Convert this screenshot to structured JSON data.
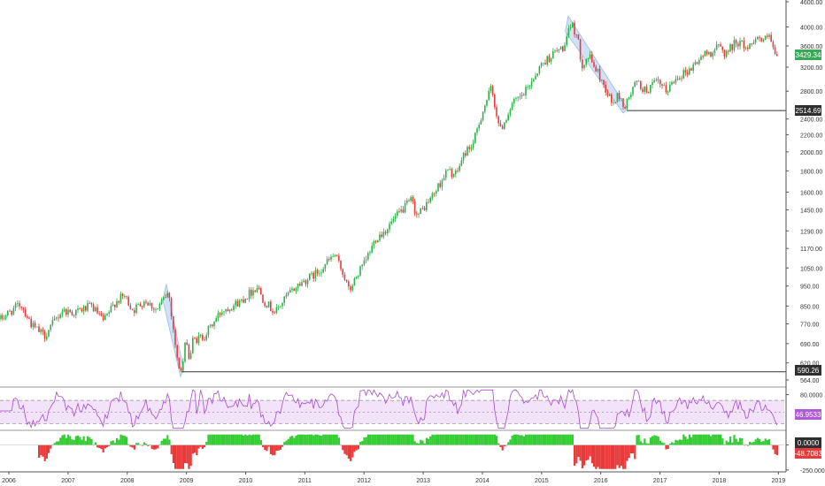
{
  "chart_data": [
    {
      "type": "candlestick",
      "panel": "price",
      "y_scale": "log",
      "ylim": [
        564,
        4600
      ],
      "y_ticks": [
        "4600.00",
        "4000.00",
        "3600.00",
        "3200.00",
        "2800.00",
        "2400.00",
        "2200.00",
        "2000.00",
        "1800.00",
        "1600.00",
        "1450.00",
        "1290.00",
        "1170.00",
        "1050.00",
        "950.00",
        "850.00",
        "770.00",
        "690.00",
        "620.00",
        "564.00"
      ],
      "x_ticks": [
        "2006",
        "2007",
        "2008",
        "2009",
        "2010",
        "2011",
        "2012",
        "2013",
        "2014",
        "2015",
        "2016",
        "2017",
        "2018",
        "2019"
      ],
      "x_range": [
        2005.85,
        2019.1
      ],
      "anchors": [
        [
          2005.85,
          790
        ],
        [
          2006.2,
          860
        ],
        [
          2006.4,
          760
        ],
        [
          2006.6,
          720
        ],
        [
          2006.9,
          830
        ],
        [
          2007.1,
          820
        ],
        [
          2007.4,
          850
        ],
        [
          2007.6,
          780
        ],
        [
          2007.8,
          870
        ],
        [
          2007.95,
          900
        ],
        [
          2008.1,
          830
        ],
        [
          2008.3,
          880
        ],
        [
          2008.5,
          830
        ],
        [
          2008.65,
          900
        ],
        [
          2008.7,
          920
        ],
        [
          2008.85,
          620
        ],
        [
          2008.92,
          590
        ],
        [
          2009.0,
          720
        ],
        [
          2009.05,
          620
        ],
        [
          2009.1,
          700
        ],
        [
          2009.3,
          720
        ],
        [
          2009.6,
          830
        ],
        [
          2009.9,
          870
        ],
        [
          2010.2,
          950
        ],
        [
          2010.3,
          880
        ],
        [
          2010.5,
          820
        ],
        [
          2010.7,
          900
        ],
        [
          2010.9,
          960
        ],
        [
          2011.2,
          1020
        ],
        [
          2011.5,
          1130
        ],
        [
          2011.65,
          1020
        ],
        [
          2011.75,
          920
        ],
        [
          2011.9,
          1020
        ],
        [
          2012.0,
          1070
        ],
        [
          2012.2,
          1240
        ],
        [
          2012.35,
          1290
        ],
        [
          2012.5,
          1370
        ],
        [
          2012.65,
          1450
        ],
        [
          2012.8,
          1530
        ],
        [
          2012.9,
          1400
        ],
        [
          2013.0,
          1460
        ],
        [
          2013.2,
          1600
        ],
        [
          2013.4,
          1800
        ],
        [
          2013.55,
          1760
        ],
        [
          2013.7,
          1990
        ],
        [
          2013.85,
          2100
        ],
        [
          2014.0,
          2500
        ],
        [
          2014.15,
          2850
        ],
        [
          2014.3,
          2250
        ],
        [
          2014.5,
          2600
        ],
        [
          2014.7,
          2750
        ],
        [
          2014.85,
          3000
        ],
        [
          2015.0,
          3250
        ],
        [
          2015.2,
          3450
        ],
        [
          2015.4,
          3600
        ],
        [
          2015.5,
          4100
        ],
        [
          2015.6,
          3800
        ],
        [
          2015.68,
          3250
        ],
        [
          2015.8,
          3400
        ],
        [
          2015.95,
          3100
        ],
        [
          2016.1,
          2800
        ],
        [
          2016.2,
          2600
        ],
        [
          2016.3,
          2750
        ],
        [
          2016.4,
          2550
        ],
        [
          2016.5,
          2750
        ],
        [
          2016.6,
          2950
        ],
        [
          2016.75,
          2800
        ],
        [
          2016.95,
          2950
        ],
        [
          2017.1,
          2800
        ],
        [
          2017.3,
          3050
        ],
        [
          2017.5,
          3150
        ],
        [
          2017.7,
          3400
        ],
        [
          2017.9,
          3500
        ],
        [
          2018.0,
          3600
        ],
        [
          2018.1,
          3450
        ],
        [
          2018.3,
          3700
        ],
        [
          2018.5,
          3550
        ],
        [
          2018.6,
          3800
        ],
        [
          2018.75,
          3700
        ],
        [
          2018.85,
          3800
        ],
        [
          2018.95,
          3350
        ],
        [
          2019.0,
          3429.34
        ]
      ],
      "last_value": "3429.34",
      "support_low": "590.26",
      "support_2016": "2514.69",
      "colors": {
        "up": "#2bb34a",
        "down": "#e83a3a",
        "highlight": "#9bbbe8",
        "last_badge": "#3ca659",
        "level_badge": "#2f2f2f"
      }
    },
    {
      "type": "line",
      "panel": "rsi",
      "ylim": [
        20,
        90
      ],
      "y_ticks": [
        "80.0000"
      ],
      "bands": [
        70,
        30
      ],
      "mid": 50,
      "last_value": "46.9533",
      "colors": {
        "line": "#a94ad2",
        "band_fill": "#f2e2fa",
        "badge": "#b05ad8"
      }
    },
    {
      "type": "bar",
      "panel": "histogram",
      "ylim": [
        -260,
        120
      ],
      "y_ticks": [
        "0.0000",
        "-250.0000"
      ],
      "zero_label": "0.0000",
      "last_value": "-48.7083",
      "colors": {
        "pos": "#33cc33",
        "neg": "#e83a3a",
        "badge_zero": "#2f2f2f",
        "badge_last": "#e83a3a"
      }
    }
  ]
}
